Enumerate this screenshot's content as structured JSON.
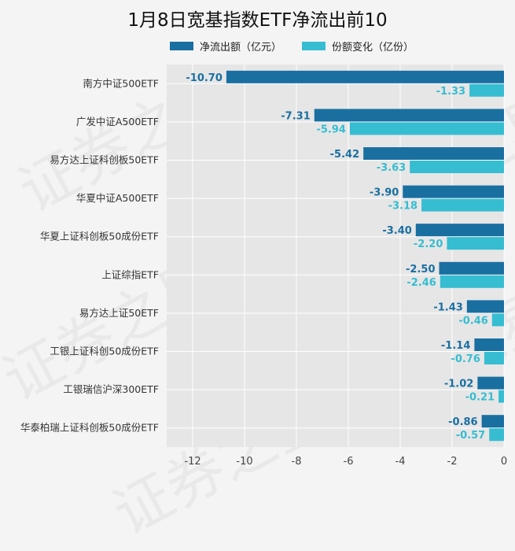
{
  "chart_data": {
    "type": "bar",
    "orientation": "horizontal",
    "title": "1月8日宽基指数ETF净流出前10",
    "categories": [
      "南方中证500ETF",
      "广发中证A500ETF",
      "易方达上证科创板50ETF",
      "华夏中证A500ETF",
      "华夏上证科创板50成份ETF",
      "上证综指ETF",
      "易方达上证50ETF",
      "工银上证科创50成份ETF",
      "工银瑞信沪深300ETF",
      "华泰柏瑞上证科创板50成份ETF"
    ],
    "series": [
      {
        "name": "净流出额（亿元）",
        "color": "#1a6fa1",
        "values": [
          -10.7,
          -7.31,
          -5.42,
          -3.9,
          -3.4,
          -2.5,
          -1.43,
          -1.14,
          -1.02,
          -0.86
        ],
        "labels": [
          "-10.70",
          "-7.31",
          "-5.42",
          "-3.90",
          "-3.40",
          "-2.50",
          "-1.43",
          "-1.14",
          "-1.02",
          "-0.86"
        ]
      },
      {
        "name": "份额变化（亿份）",
        "color": "#36bdd1",
        "values": [
          -1.33,
          -5.94,
          -3.63,
          -3.18,
          -2.2,
          -2.46,
          -0.46,
          -0.76,
          -0.21,
          -0.57
        ],
        "labels": [
          "-1.33",
          "-5.94",
          "-3.63",
          "-3.18",
          "-2.20",
          "-2.46",
          "-0.46",
          "-0.76",
          "-0.21",
          "-0.57"
        ]
      }
    ],
    "xlim": [
      -13,
      0
    ],
    "xticks": [
      -12,
      -10,
      -8,
      -6,
      -4,
      -2,
      0
    ],
    "xtick_labels": [
      "-12",
      "-10",
      "-8",
      "-6",
      "-4",
      "-2",
      "0"
    ],
    "grid": true,
    "legend_position": "top",
    "background": "#e6e6e6"
  },
  "watermark": "证券之星"
}
